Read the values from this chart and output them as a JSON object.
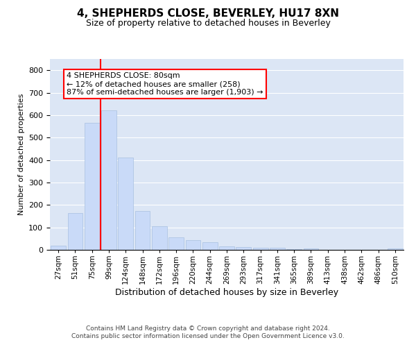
{
  "title": "4, SHEPHERDS CLOSE, BEVERLEY, HU17 8XN",
  "subtitle": "Size of property relative to detached houses in Beverley",
  "xlabel": "Distribution of detached houses by size in Beverley",
  "ylabel": "Number of detached properties",
  "bar_color": "#c9daf8",
  "bar_edgecolor": "#a8c0e0",
  "background_color": "#ffffff",
  "plot_bg_color": "#dce6f5",
  "grid_color": "#ffffff",
  "categories": [
    "27sqm",
    "51sqm",
    "75sqm",
    "99sqm",
    "124sqm",
    "148sqm",
    "172sqm",
    "196sqm",
    "220sqm",
    "244sqm",
    "269sqm",
    "293sqm",
    "317sqm",
    "341sqm",
    "365sqm",
    "389sqm",
    "413sqm",
    "438sqm",
    "462sqm",
    "486sqm",
    "510sqm"
  ],
  "values": [
    20,
    163,
    565,
    620,
    412,
    172,
    105,
    57,
    44,
    33,
    15,
    11,
    9,
    9,
    2,
    7,
    0,
    0,
    0,
    0,
    7
  ],
  "ylim": [
    0,
    850
  ],
  "yticks": [
    0,
    100,
    200,
    300,
    400,
    500,
    600,
    700,
    800
  ],
  "property_line_x": 2.5,
  "annotation_text": "4 SHEPHERDS CLOSE: 80sqm\n← 12% of detached houses are smaller (258)\n87% of semi-detached houses are larger (1,903) →",
  "footer_line1": "Contains HM Land Registry data © Crown copyright and database right 2024.",
  "footer_line2": "Contains public sector information licensed under the Open Government Licence v3.0."
}
